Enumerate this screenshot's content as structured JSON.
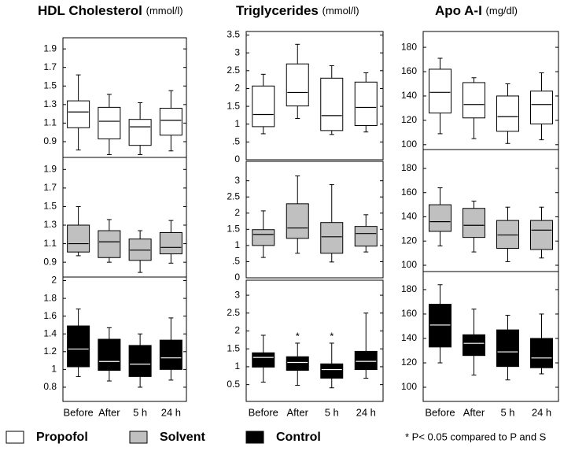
{
  "chart_data": [
    {
      "type": "box",
      "title": "HDL Cholesterol",
      "subtitle": "(mmol/l)",
      "categories": [
        "Before",
        "After",
        "5 h",
        "24 h"
      ],
      "panels": [
        {
          "color": "#ffffff",
          "median_color": "#000000",
          "ylim": [
            0.73,
            2.02
          ],
          "yticks": [
            0.9,
            1.1,
            1.3,
            1.5,
            1.7,
            1.9
          ],
          "whisker_low": [
            0.81,
            0.76,
            0.76,
            0.8
          ],
          "q1": [
            1.05,
            0.93,
            0.86,
            0.97
          ],
          "median": [
            1.22,
            1.12,
            1.06,
            1.13
          ],
          "q3": [
            1.34,
            1.27,
            1.14,
            1.26
          ],
          "whisker_high": [
            1.62,
            1.41,
            1.32,
            1.45
          ]
        },
        {
          "color": "#c0c0c0",
          "median_color": "#000000",
          "ylim": [
            0.74,
            2.03
          ],
          "yticks": [
            0.9,
            1.1,
            1.3,
            1.5,
            1.7,
            1.9
          ],
          "whisker_low": [
            0.97,
            0.9,
            0.79,
            0.89
          ],
          "q1": [
            1.01,
            0.95,
            0.92,
            0.99
          ],
          "median": [
            1.1,
            1.12,
            1.03,
            1.06
          ],
          "q3": [
            1.3,
            1.24,
            1.15,
            1.22
          ],
          "whisker_high": [
            1.5,
            1.36,
            1.24,
            1.35
          ]
        },
        {
          "color": "#000000",
          "median_color": "#ffffff",
          "ylim": [
            0.64,
            2.04
          ],
          "yticks": [
            0.8,
            1,
            1.2,
            1.4,
            1.6,
            1.8,
            2
          ],
          "whisker_low": [
            0.92,
            0.87,
            0.8,
            0.88
          ],
          "q1": [
            1.03,
            0.99,
            0.92,
            1.0
          ],
          "median": [
            1.23,
            1.09,
            1.06,
            1.13
          ],
          "q3": [
            1.49,
            1.34,
            1.27,
            1.33
          ],
          "whisker_high": [
            1.68,
            1.47,
            1.4,
            1.58
          ]
        }
      ]
    },
    {
      "type": "box",
      "title": "Triglycerides",
      "subtitle": "(mmol/l)",
      "categories": [
        "Before",
        "After",
        "5 h",
        "24 h"
      ],
      "annotations": [
        {
          "text": "*",
          "category": 1
        },
        {
          "text": "*",
          "category": 2
        }
      ],
      "panels": [
        {
          "color": "#ffffff",
          "median_color": "#000000",
          "ylim": [
            0,
            3.6
          ],
          "yticks": [
            0,
            {
              "value": 0.5,
              "label": ".5"
            },
            1,
            1.5,
            2,
            2.5,
            3,
            3.5
          ],
          "whisker_low": [
            0.73,
            1.16,
            0.71,
            0.78
          ],
          "q1": [
            0.93,
            1.51,
            0.82,
            0.96
          ],
          "median": [
            1.27,
            1.89,
            1.24,
            1.47
          ],
          "q3": [
            2.07,
            2.69,
            2.29,
            2.18
          ],
          "whisker_high": [
            2.4,
            3.24,
            2.64,
            2.44
          ]
        },
        {
          "color": "#c0c0c0",
          "median_color": "#000000",
          "ylim": [
            0,
            3.6
          ],
          "yticks": [
            0,
            {
              "value": 0.5,
              "label": ".5"
            },
            1,
            1.5,
            2,
            2.5,
            3
          ],
          "whisker_low": [
            0.63,
            0.76,
            0.49,
            0.8
          ],
          "q1": [
            1.0,
            1.22,
            0.76,
            0.98
          ],
          "median": [
            1.34,
            1.54,
            1.27,
            1.37
          ],
          "q3": [
            1.49,
            2.29,
            1.71,
            1.59
          ],
          "whisker_high": [
            2.07,
            3.15,
            2.88,
            1.95
          ]
        },
        {
          "color": "#000000",
          "median_color": "#ffffff",
          "ylim": [
            0.03,
            3.42
          ],
          "yticks": [
            0.5,
            1,
            1.5,
            2,
            2.5,
            3
          ],
          "whisker_low": [
            0.57,
            0.48,
            0.41,
            0.68
          ],
          "q1": [
            0.99,
            0.9,
            0.68,
            0.92
          ],
          "median": [
            1.26,
            1.12,
            0.92,
            1.15
          ],
          "q3": [
            1.39,
            1.28,
            1.08,
            1.43
          ],
          "whisker_high": [
            1.88,
            1.66,
            1.66,
            2.5
          ]
        }
      ]
    },
    {
      "type": "box",
      "title": "Apo A-I",
      "subtitle": "(mg/dl)",
      "categories": [
        "Before",
        "After",
        "5 h",
        "24 h"
      ],
      "panels": [
        {
          "color": "#ffffff",
          "median_color": "#000000",
          "ylim": [
            96,
            193
          ],
          "yticks": [
            100,
            120,
            140,
            160,
            180
          ],
          "whisker_low": [
            109,
            105,
            101,
            104
          ],
          "q1": [
            126,
            122,
            111,
            117
          ],
          "median": [
            143,
            133,
            123,
            133
          ],
          "q3": [
            162,
            151,
            140,
            144
          ],
          "whisker_high": [
            171,
            155,
            150,
            159
          ]
        },
        {
          "color": "#c0c0c0",
          "median_color": "#000000",
          "ylim": [
            94.8,
            195.6
          ],
          "yticks": [
            100,
            120,
            140,
            160,
            180
          ],
          "whisker_low": [
            116,
            111,
            103,
            106
          ],
          "q1": [
            128,
            123,
            114,
            113
          ],
          "median": [
            136,
            133,
            125,
            129
          ],
          "q3": [
            150,
            147,
            137,
            137
          ],
          "whisker_high": [
            164,
            153,
            148,
            148
          ]
        },
        {
          "color": "#000000",
          "median_color": "#ffffff",
          "ylim": [
            88.4,
            194.8
          ],
          "yticks": [
            100,
            120,
            140,
            160,
            180
          ],
          "whisker_low": [
            120,
            110,
            106,
            111
          ],
          "q1": [
            133,
            126,
            117,
            116
          ],
          "median": [
            151,
            136,
            129,
            124
          ],
          "q3": [
            168,
            143,
            147,
            140
          ],
          "whisker_high": [
            184,
            164,
            159,
            160
          ]
        }
      ]
    }
  ],
  "legend": [
    {
      "name": "Propofol",
      "color": "#ffffff"
    },
    {
      "name": "Solvent",
      "color": "#c0c0c0"
    },
    {
      "name": "Control",
      "color": "#000000"
    }
  ],
  "footnote": "* P< 0.05 compared to P and S"
}
